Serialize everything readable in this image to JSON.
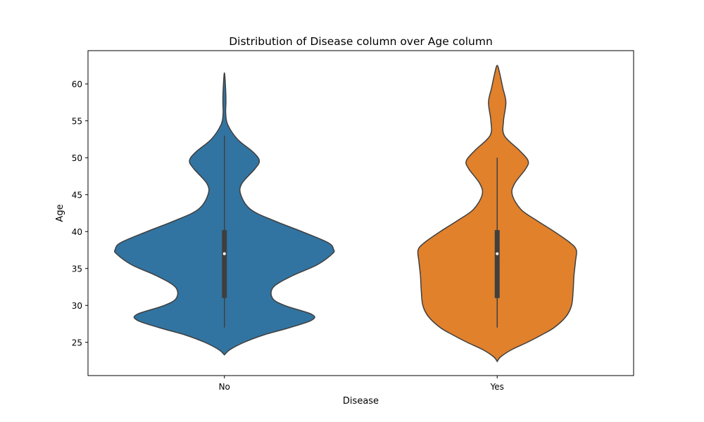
{
  "chart_data": {
    "type": "violin",
    "title": "Distribution of Disease column over Age column",
    "xlabel": "Disease",
    "ylabel": "Age",
    "categories": [
      "No",
      "Yes"
    ],
    "ylim": [
      20.5,
      64.5
    ],
    "yticks": [
      25,
      30,
      35,
      40,
      45,
      50,
      55,
      60
    ],
    "grid": false,
    "legend": "none",
    "series": [
      {
        "category": "No",
        "color": "#3274a1",
        "density_max_halfwidth_fraction": 0.4,
        "quartiles": {
          "q1": 31,
          "median": 37,
          "q3": 40.2
        },
        "whiskers": [
          27,
          53
        ],
        "density_profile": [
          {
            "y": 23.3,
            "w": 0.0
          },
          {
            "y": 24.0,
            "w": 0.05
          },
          {
            "y": 25.0,
            "w": 0.18
          },
          {
            "y": 26.0,
            "w": 0.36
          },
          {
            "y": 27.0,
            "w": 0.6
          },
          {
            "y": 28.0,
            "w": 0.8
          },
          {
            "y": 28.8,
            "w": 0.8
          },
          {
            "y": 30.0,
            "w": 0.55
          },
          {
            "y": 31.0,
            "w": 0.44
          },
          {
            "y": 32.5,
            "w": 0.45
          },
          {
            "y": 34.0,
            "w": 0.62
          },
          {
            "y": 35.5,
            "w": 0.85
          },
          {
            "y": 37.0,
            "w": 0.99
          },
          {
            "y": 37.6,
            "w": 1.0
          },
          {
            "y": 38.5,
            "w": 0.95
          },
          {
            "y": 40.0,
            "w": 0.71
          },
          {
            "y": 41.5,
            "w": 0.45
          },
          {
            "y": 43.0,
            "w": 0.24
          },
          {
            "y": 45.0,
            "w": 0.15
          },
          {
            "y": 46.5,
            "w": 0.16
          },
          {
            "y": 48.5,
            "w": 0.28
          },
          {
            "y": 49.6,
            "w": 0.32
          },
          {
            "y": 50.8,
            "w": 0.26
          },
          {
            "y": 52.5,
            "w": 0.12
          },
          {
            "y": 54.5,
            "w": 0.03
          },
          {
            "y": 56.0,
            "w": 0.012
          },
          {
            "y": 57.5,
            "w": 0.014
          },
          {
            "y": 59.0,
            "w": 0.012
          },
          {
            "y": 61.5,
            "w": 0.0
          }
        ]
      },
      {
        "category": "Yes",
        "color": "#e1812c",
        "density_max_halfwidth_fraction": 0.29,
        "quartiles": {
          "q1": 31,
          "median": 37,
          "q3": 40.2
        },
        "whiskers": [
          27,
          50
        ],
        "density_profile": [
          {
            "y": 22.4,
            "w": 0.0
          },
          {
            "y": 23.0,
            "w": 0.04
          },
          {
            "y": 24.0,
            "w": 0.18
          },
          {
            "y": 25.0,
            "w": 0.38
          },
          {
            "y": 26.0,
            "w": 0.56
          },
          {
            "y": 27.0,
            "w": 0.72
          },
          {
            "y": 28.5,
            "w": 0.87
          },
          {
            "y": 30.0,
            "w": 0.94
          },
          {
            "y": 32.0,
            "w": 0.96
          },
          {
            "y": 34.0,
            "w": 0.97
          },
          {
            "y": 36.0,
            "w": 0.99
          },
          {
            "y": 37.5,
            "w": 1.0
          },
          {
            "y": 38.5,
            "w": 0.92
          },
          {
            "y": 40.0,
            "w": 0.72
          },
          {
            "y": 41.5,
            "w": 0.5
          },
          {
            "y": 43.0,
            "w": 0.3
          },
          {
            "y": 45.0,
            "w": 0.19
          },
          {
            "y": 46.5,
            "w": 0.22
          },
          {
            "y": 48.5,
            "w": 0.36
          },
          {
            "y": 49.6,
            "w": 0.39
          },
          {
            "y": 51.0,
            "w": 0.28
          },
          {
            "y": 53.0,
            "w": 0.09
          },
          {
            "y": 55.0,
            "w": 0.08
          },
          {
            "y": 57.5,
            "w": 0.11
          },
          {
            "y": 59.5,
            "w": 0.07
          },
          {
            "y": 61.5,
            "w": 0.03
          },
          {
            "y": 62.5,
            "w": 0.0
          }
        ]
      }
    ]
  }
}
